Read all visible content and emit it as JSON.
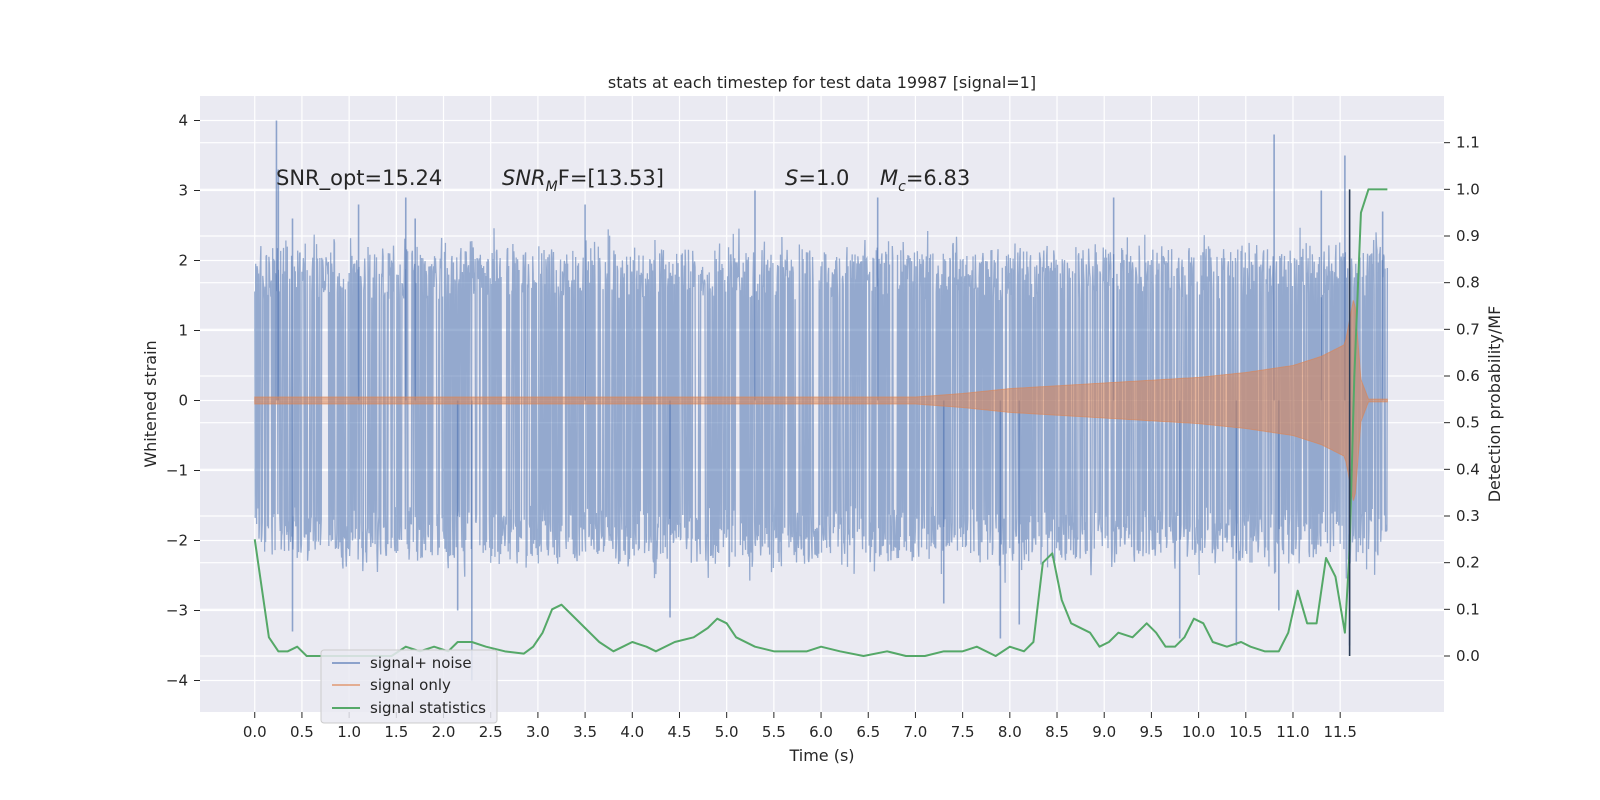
{
  "chart_data": {
    "type": "line",
    "title": "stats at each timestep for test data 19987 [signal=1]",
    "xlabel": "Time (s)",
    "ylabel": "Whitened strain",
    "y2label": "Detection probability/MF",
    "xlim": [
      -0.58,
      12.6
    ],
    "ylim": [
      -4.45,
      4.35
    ],
    "y2lim": [
      -0.12,
      1.2
    ],
    "x_ticks": [
      "0.0",
      "0.5",
      "1.0",
      "1.5",
      "2.0",
      "2.5",
      "3.0",
      "3.5",
      "4.0",
      "4.5",
      "5.0",
      "5.5",
      "6.0",
      "6.5",
      "7.0",
      "7.5",
      "8.0",
      "8.5",
      "9.0",
      "9.5",
      "10.0",
      "10.5",
      "11.0",
      "11.5"
    ],
    "y_ticks": [
      "4",
      "3",
      "2",
      "1",
      "0",
      "−1",
      "−2",
      "−3",
      "−4"
    ],
    "y2_ticks": [
      "1.1",
      "1.0",
      "0.9",
      "0.8",
      "0.7",
      "0.6",
      "0.5",
      "0.4",
      "0.3",
      "0.2",
      "0.1",
      "0.0"
    ],
    "annotations": {
      "snr_opt": "SNR_opt=15.24",
      "snr_mf_name": "SNR",
      "snr_mf_sub": "M",
      "snr_mf_rest": "F=[13.53]",
      "s_name": "S",
      "s_rest": "=1.0",
      "mc_name": "M",
      "mc_sub": "c",
      "mc_rest": "=6.83"
    },
    "series": [
      {
        "name": "signal+ noise",
        "color": "#4c72b0",
        "kind": "noise",
        "t_start": 0.0,
        "t_end": 12.0,
        "typical_envelope": [
          -2.0,
          1.9
        ],
        "peaks": [
          {
            "t": 0.23,
            "v": 4.0
          },
          {
            "t": 0.25,
            "v": 3.3
          },
          {
            "t": 0.4,
            "v": -3.3
          },
          {
            "t": 0.4,
            "v": 2.6
          },
          {
            "t": 1.1,
            "v": 2.8
          },
          {
            "t": 1.6,
            "v": 2.9
          },
          {
            "t": 1.7,
            "v": 2.6
          },
          {
            "t": 2.3,
            "v": -4.0
          },
          {
            "t": 2.15,
            "v": -3.0
          },
          {
            "t": 3.5,
            "v": 2.8
          },
          {
            "t": 4.4,
            "v": -3.1
          },
          {
            "t": 5.3,
            "v": 3.0
          },
          {
            "t": 6.6,
            "v": 2.9
          },
          {
            "t": 7.3,
            "v": -2.9
          },
          {
            "t": 7.9,
            "v": -3.4
          },
          {
            "t": 8.1,
            "v": -3.2
          },
          {
            "t": 9.1,
            "v": 2.9
          },
          {
            "t": 9.8,
            "v": -3.4
          },
          {
            "t": 10.4,
            "v": -3.5
          },
          {
            "t": 10.8,
            "v": 3.8
          },
          {
            "t": 10.85,
            "v": -3.0
          },
          {
            "t": 11.3,
            "v": 3.0
          },
          {
            "t": 11.55,
            "v": 3.5
          },
          {
            "t": 11.6,
            "v": -3.5
          },
          {
            "t": 11.95,
            "v": 2.7
          }
        ]
      },
      {
        "name": "signal only",
        "color": "#dd8452",
        "kind": "chirp",
        "t_start": 0.0,
        "t_end": 12.0,
        "merger_time": 11.65,
        "envelope": [
          {
            "t": 0.0,
            "a": 0.05
          },
          {
            "t": 7.0,
            "a": 0.05
          },
          {
            "t": 7.5,
            "a": 0.1
          },
          {
            "t": 8.0,
            "a": 0.17
          },
          {
            "t": 9.0,
            "a": 0.25
          },
          {
            "t": 10.0,
            "a": 0.33
          },
          {
            "t": 10.5,
            "a": 0.4
          },
          {
            "t": 11.0,
            "a": 0.5
          },
          {
            "t": 11.3,
            "a": 0.63
          },
          {
            "t": 11.55,
            "a": 0.8
          },
          {
            "t": 11.65,
            "a": 1.5
          },
          {
            "t": 11.72,
            "a": 0.3
          },
          {
            "t": 11.8,
            "a": 0.02
          },
          {
            "t": 12.0,
            "a": 0.02
          }
        ]
      },
      {
        "name": "signal statistics",
        "color": "#55a868",
        "kind": "probability",
        "points": [
          [
            0.0,
            0.25
          ],
          [
            0.15,
            0.04
          ],
          [
            0.25,
            0.01
          ],
          [
            0.35,
            0.01
          ],
          [
            0.45,
            0.02
          ],
          [
            0.55,
            0.0
          ],
          [
            0.7,
            0.0
          ],
          [
            0.9,
            0.0
          ],
          [
            1.1,
            0.0
          ],
          [
            1.3,
            0.0
          ],
          [
            1.45,
            0.0
          ],
          [
            1.6,
            0.02
          ],
          [
            1.75,
            0.01
          ],
          [
            1.9,
            0.02
          ],
          [
            2.05,
            0.01
          ],
          [
            2.15,
            0.03
          ],
          [
            2.3,
            0.03
          ],
          [
            2.45,
            0.02
          ],
          [
            2.65,
            0.01
          ],
          [
            2.85,
            0.005
          ],
          [
            2.95,
            0.02
          ],
          [
            3.05,
            0.05
          ],
          [
            3.15,
            0.1
          ],
          [
            3.25,
            0.11
          ],
          [
            3.35,
            0.09
          ],
          [
            3.5,
            0.06
          ],
          [
            3.65,
            0.03
          ],
          [
            3.8,
            0.01
          ],
          [
            3.9,
            0.02
          ],
          [
            4.0,
            0.03
          ],
          [
            4.15,
            0.02
          ],
          [
            4.25,
            0.01
          ],
          [
            4.45,
            0.03
          ],
          [
            4.65,
            0.04
          ],
          [
            4.8,
            0.06
          ],
          [
            4.9,
            0.08
          ],
          [
            5.0,
            0.07
          ],
          [
            5.1,
            0.04
          ],
          [
            5.3,
            0.02
          ],
          [
            5.5,
            0.01
          ],
          [
            5.7,
            0.01
          ],
          [
            5.85,
            0.01
          ],
          [
            6.0,
            0.02
          ],
          [
            6.2,
            0.01
          ],
          [
            6.45,
            0.0
          ],
          [
            6.7,
            0.01
          ],
          [
            6.9,
            0.0
          ],
          [
            7.1,
            0.0
          ],
          [
            7.3,
            0.01
          ],
          [
            7.5,
            0.01
          ],
          [
            7.65,
            0.02
          ],
          [
            7.85,
            0.0
          ],
          [
            8.0,
            0.02
          ],
          [
            8.15,
            0.01
          ],
          [
            8.25,
            0.03
          ],
          [
            8.35,
            0.2
          ],
          [
            8.45,
            0.22
          ],
          [
            8.55,
            0.12
          ],
          [
            8.65,
            0.07
          ],
          [
            8.85,
            0.05
          ],
          [
            8.95,
            0.02
          ],
          [
            9.05,
            0.03
          ],
          [
            9.15,
            0.05
          ],
          [
            9.3,
            0.04
          ],
          [
            9.45,
            0.07
          ],
          [
            9.55,
            0.05
          ],
          [
            9.65,
            0.02
          ],
          [
            9.75,
            0.02
          ],
          [
            9.85,
            0.04
          ],
          [
            9.95,
            0.08
          ],
          [
            10.05,
            0.07
          ],
          [
            10.15,
            0.03
          ],
          [
            10.3,
            0.02
          ],
          [
            10.45,
            0.03
          ],
          [
            10.55,
            0.02
          ],
          [
            10.7,
            0.01
          ],
          [
            10.85,
            0.01
          ],
          [
            10.95,
            0.05
          ],
          [
            11.05,
            0.14
          ],
          [
            11.15,
            0.07
          ],
          [
            11.25,
            0.07
          ],
          [
            11.35,
            0.21
          ],
          [
            11.45,
            0.17
          ],
          [
            11.55,
            0.05
          ],
          [
            11.6,
            0.23
          ],
          [
            11.65,
            0.6
          ],
          [
            11.72,
            0.95
          ],
          [
            11.8,
            1.0
          ],
          [
            11.9,
            1.0
          ],
          [
            12.0,
            1.0
          ]
        ]
      }
    ],
    "marker": {
      "t": 11.6,
      "y_low": 0.0,
      "y_high": 1.0,
      "color": "#2a3b55"
    },
    "legend": {
      "loc": "lower-left",
      "labels": [
        "signal+ noise",
        "signal only",
        "signal statistics"
      ]
    }
  }
}
